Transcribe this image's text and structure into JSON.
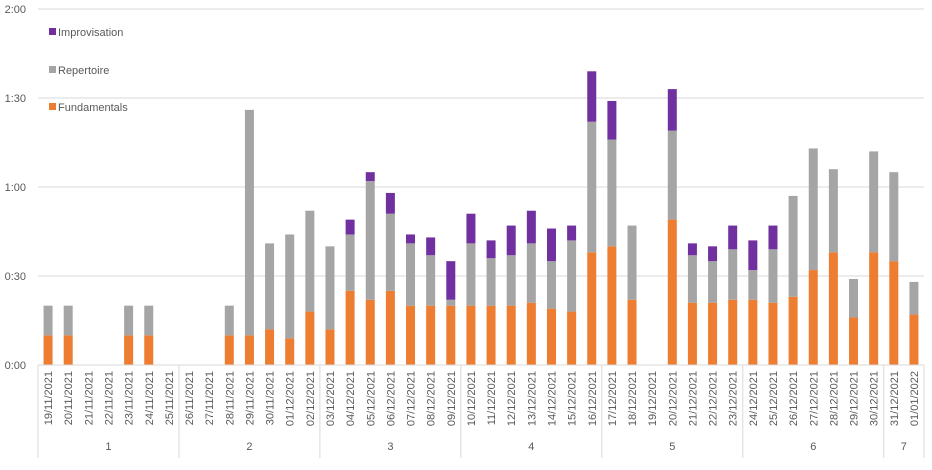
{
  "chart_data": {
    "type": "bar",
    "stacked": true,
    "title": "",
    "xlabel": "",
    "ylabel": "",
    "ylim_minutes": [
      0,
      120
    ],
    "yticks": [
      "0:00",
      "0:30",
      "1:00",
      "1:30",
      "2:00"
    ],
    "grid": true,
    "legend_position": "top-left",
    "categories": [
      "19/11/2021",
      "20/11/2021",
      "21/11/2021",
      "22/11/2021",
      "23/11/2021",
      "24/11/2021",
      "25/11/2021",
      "26/11/2021",
      "27/11/2021",
      "28/11/2021",
      "29/11/2021",
      "30/11/2021",
      "01/12/2021",
      "02/12/2021",
      "03/12/2021",
      "04/12/2021",
      "05/12/2021",
      "06/12/2021",
      "07/12/2021",
      "08/12/2021",
      "09/12/2021",
      "10/12/2021",
      "11/12/2021",
      "12/12/2021",
      "13/12/2021",
      "14/12/2021",
      "15/12/2021",
      "16/12/2021",
      "17/12/2021",
      "18/12/2021",
      "19/12/2021",
      "20/12/2021",
      "21/12/2021",
      "22/12/2021",
      "23/12/2021",
      "24/12/2021",
      "25/12/2021",
      "26/12/2021",
      "27/12/2021",
      "28/12/2021",
      "29/12/2021",
      "30/12/2021",
      "31/12/2021",
      "01/01/2022"
    ],
    "groups": [
      {
        "label": "1",
        "count": 7
      },
      {
        "label": "2",
        "count": 7
      },
      {
        "label": "3",
        "count": 7
      },
      {
        "label": "4",
        "count": 7
      },
      {
        "label": "5",
        "count": 7
      },
      {
        "label": "6",
        "count": 7
      },
      {
        "label": "7",
        "count": 2
      }
    ],
    "series": [
      {
        "name": "Fundamentals",
        "color": "#ED7D31",
        "values": [
          10,
          10,
          0,
          0,
          10,
          10,
          0,
          0,
          0,
          10,
          10,
          12,
          9,
          18,
          12,
          25,
          22,
          25,
          20,
          20,
          20,
          20,
          20,
          20,
          21,
          19,
          18,
          38,
          40,
          22,
          0,
          49,
          21,
          21,
          22,
          22,
          21,
          23,
          32,
          38,
          16,
          38,
          35,
          17
        ]
      },
      {
        "name": "Repertoire",
        "color": "#A5A5A5",
        "values": [
          10,
          10,
          0,
          0,
          10,
          10,
          0,
          0,
          0,
          10,
          76,
          29,
          35,
          34,
          28,
          19,
          40,
          26,
          21,
          17,
          2,
          21,
          16,
          17,
          20,
          16,
          24,
          44,
          36,
          25,
          0,
          30,
          16,
          14,
          17,
          10,
          18,
          34,
          41,
          28,
          13,
          34,
          30,
          11
        ]
      },
      {
        "name": "Improvisation",
        "color": "#7030A0",
        "values": [
          0,
          0,
          0,
          0,
          0,
          0,
          0,
          0,
          0,
          0,
          0,
          0,
          0,
          0,
          0,
          5,
          3,
          7,
          3,
          6,
          13,
          10,
          6,
          10,
          11,
          11,
          5,
          17,
          13,
          0,
          0,
          14,
          4,
          5,
          8,
          10,
          8,
          0,
          0,
          0,
          0,
          0,
          0,
          0
        ]
      }
    ]
  }
}
